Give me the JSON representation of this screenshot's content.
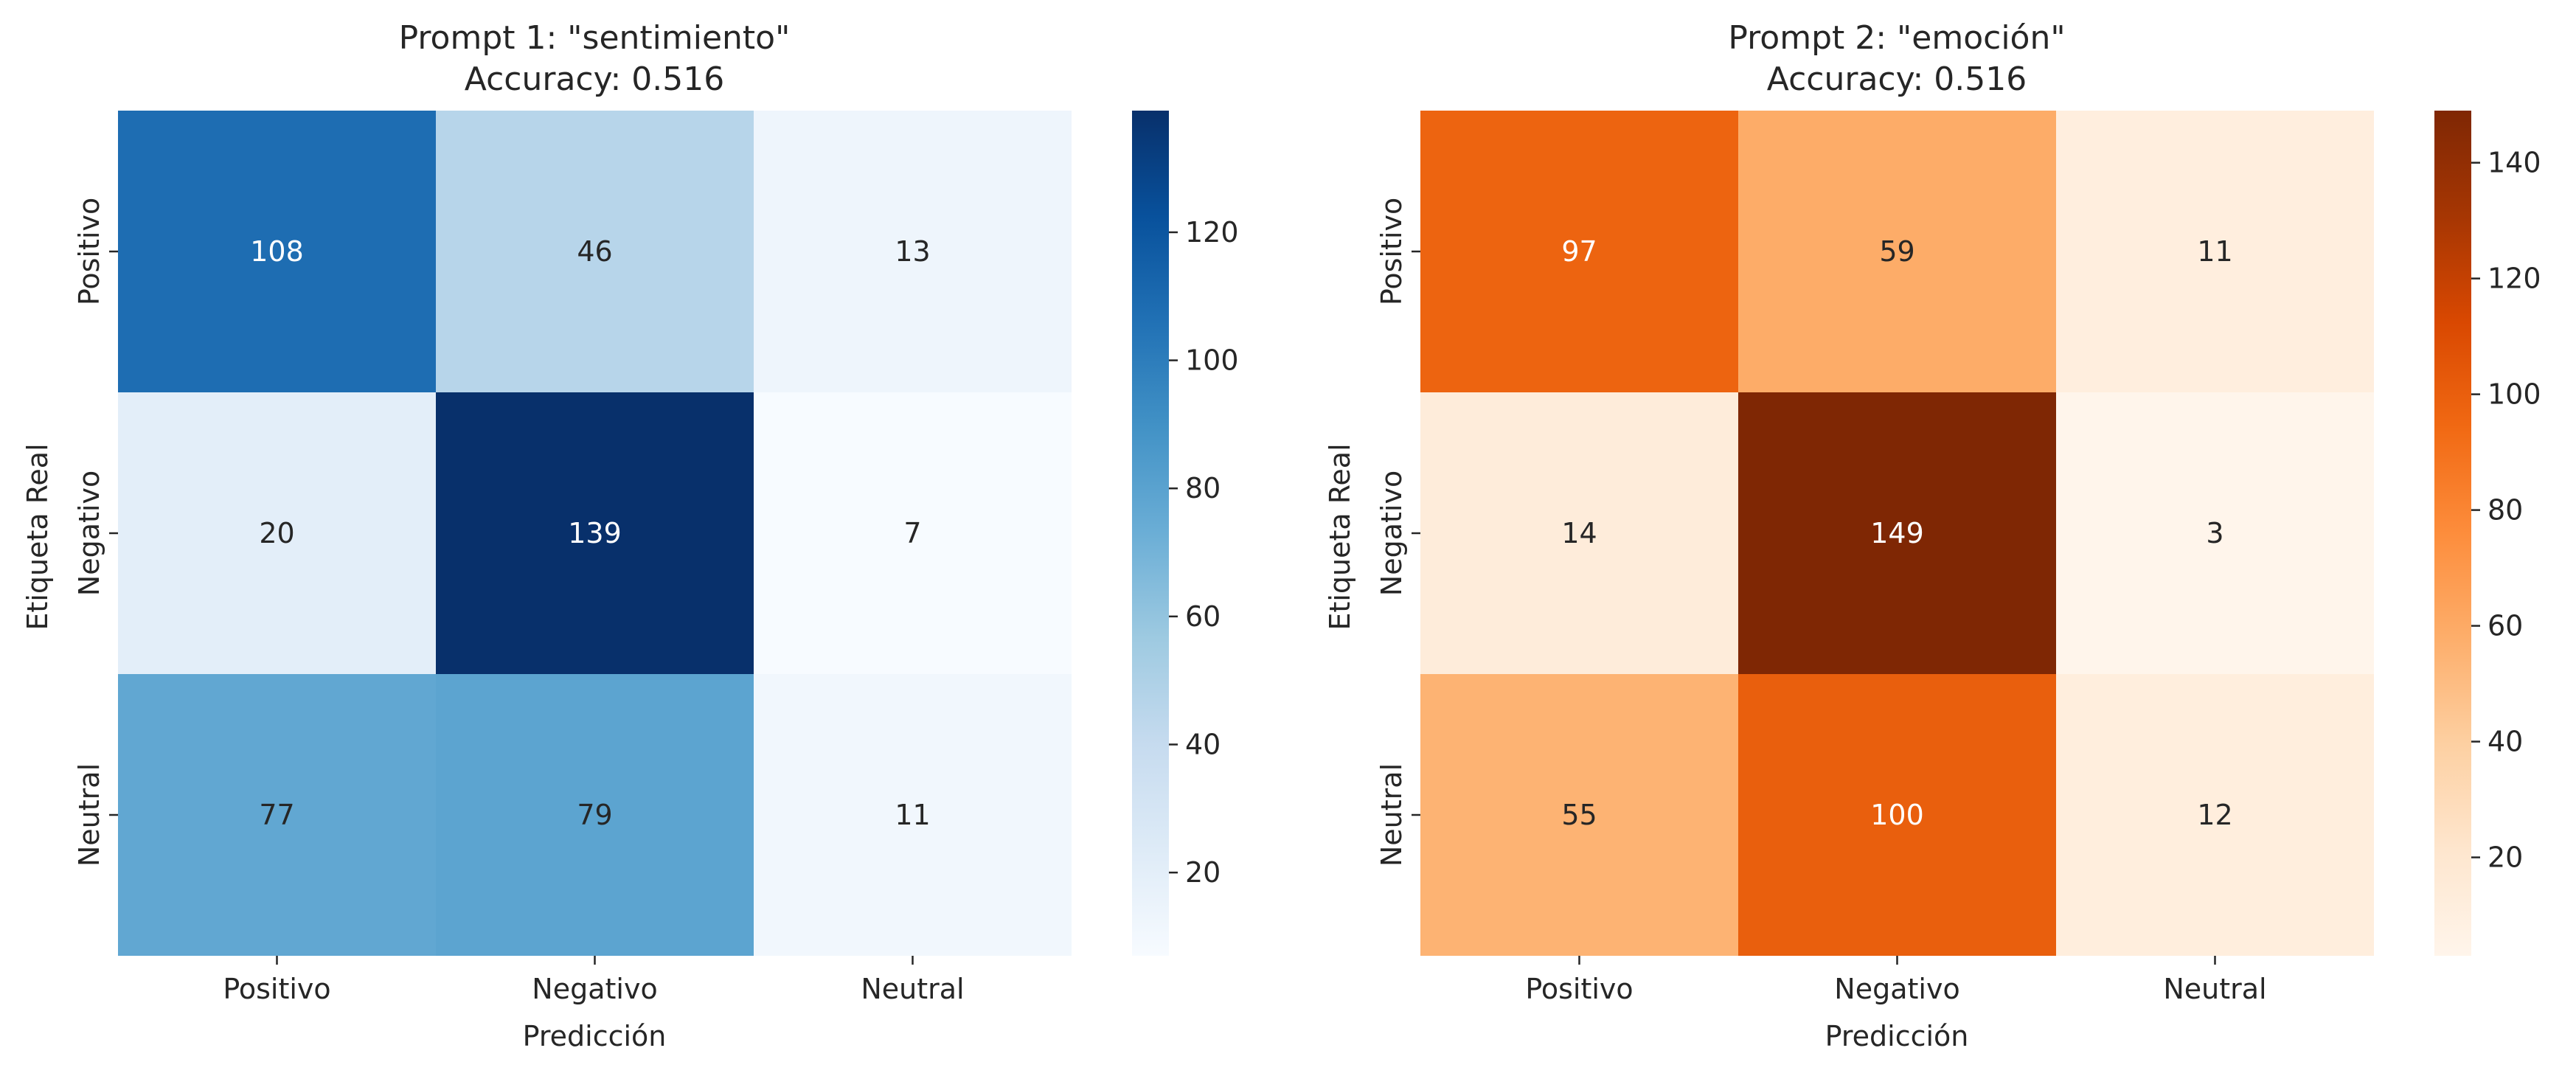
{
  "chart_data": [
    {
      "type": "heatmap",
      "title_line1": "Prompt 1: \"sentimiento\"",
      "title_line2": "Accuracy: 0.516",
      "xlabel": "Predicción",
      "ylabel": "Etiqueta Real",
      "x_categories": [
        "Positivo",
        "Negativo",
        "Neutral"
      ],
      "y_categories": [
        "Positivo",
        "Negativo",
        "Neutral"
      ],
      "values": [
        [
          108,
          46,
          13
        ],
        [
          20,
          139,
          7
        ],
        [
          77,
          79,
          11
        ]
      ],
      "colormap": "Blues",
      "colormap_stops": [
        "#f7fbff",
        "#deebf7",
        "#c6dbef",
        "#9ecae1",
        "#6baed6",
        "#4292c6",
        "#2171b5",
        "#08519c",
        "#08306b"
      ],
      "vmin": 7,
      "vmax": 139,
      "colorbar_ticks": [
        20,
        40,
        60,
        80,
        100,
        120
      ]
    },
    {
      "type": "heatmap",
      "title_line1": "Prompt 2: \"emoción\"",
      "title_line2": "Accuracy: 0.516",
      "xlabel": "Predicción",
      "ylabel": "Etiqueta Real",
      "x_categories": [
        "Positivo",
        "Negativo",
        "Neutral"
      ],
      "y_categories": [
        "Positivo",
        "Negativo",
        "Neutral"
      ],
      "values": [
        [
          97,
          59,
          11
        ],
        [
          14,
          149,
          3
        ],
        [
          55,
          100,
          12
        ]
      ],
      "colormap": "Oranges",
      "colormap_stops": [
        "#fff5eb",
        "#fee6ce",
        "#fdd0a2",
        "#fdae6b",
        "#fd8d3c",
        "#f16913",
        "#d94801",
        "#a63603",
        "#7f2704"
      ],
      "vmin": 3,
      "vmax": 149,
      "colorbar_ticks": [
        20,
        40,
        60,
        80,
        100,
        120,
        140
      ]
    }
  ]
}
